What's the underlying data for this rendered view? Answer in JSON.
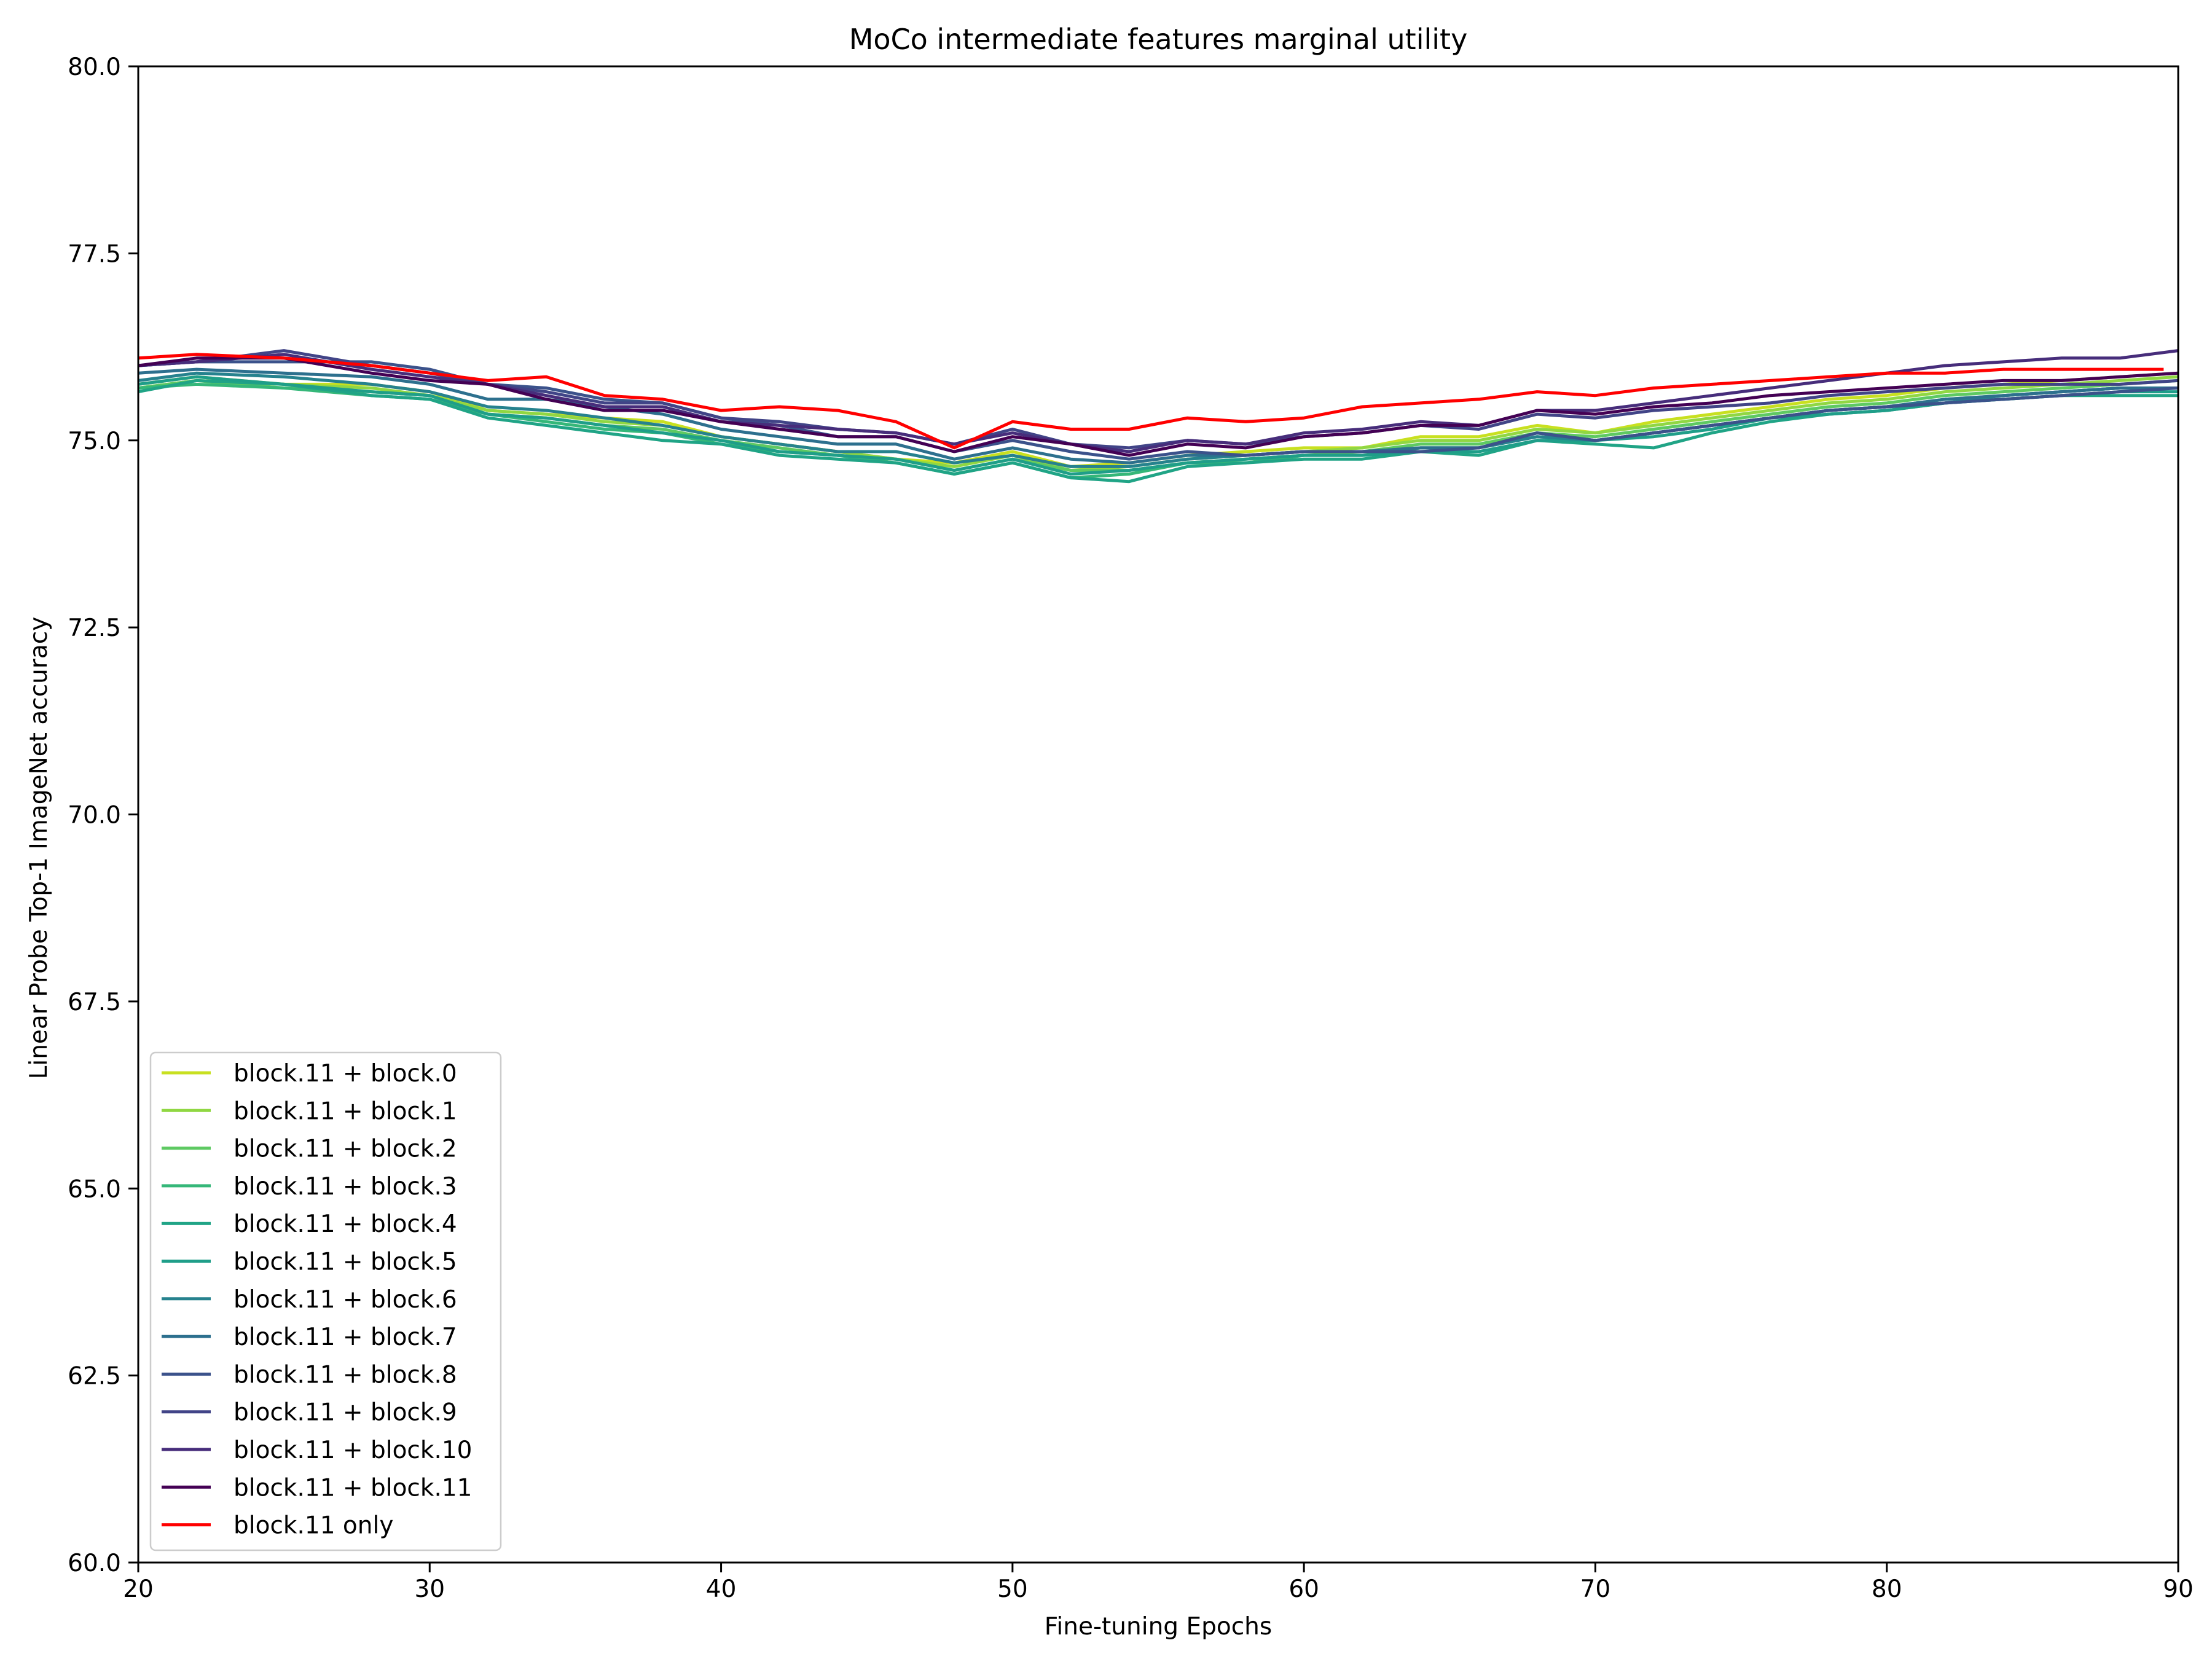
{
  "chart_data": {
    "type": "line",
    "title": "MoCo intermediate features marginal utility",
    "xlabel": "Fine-tuning Epochs",
    "ylabel": "Linear Probe Top-1 ImageNet accuracy",
    "xlim": [
      20,
      90
    ],
    "ylim": [
      60.0,
      80.0
    ],
    "xticks": [
      "20",
      "30",
      "40",
      "50",
      "60",
      "70",
      "80",
      "90"
    ],
    "yticks": [
      "60.0",
      "62.5",
      "65.0",
      "67.5",
      "70.0",
      "72.5",
      "75.0",
      "77.5",
      "80.0"
    ],
    "grid": false,
    "legend_position": "lower-left",
    "anchor_epochs": [
      20,
      22,
      25,
      28,
      30,
      32,
      34,
      36,
      38,
      40,
      42,
      44,
      46,
      48,
      50,
      52,
      54,
      56,
      58,
      60,
      62,
      64,
      66,
      68,
      70,
      72,
      74,
      76,
      78,
      80,
      82,
      84,
      86,
      88,
      90
    ],
    "series": [
      {
        "name": "block.11 + block.0",
        "color": "#c8e020",
        "values": [
          75.75,
          75.85,
          75.75,
          75.75,
          75.65,
          75.4,
          75.35,
          75.3,
          75.25,
          75.05,
          74.95,
          74.85,
          74.75,
          74.7,
          74.85,
          74.65,
          74.7,
          74.8,
          74.85,
          74.9,
          74.9,
          75.05,
          75.05,
          75.2,
          75.1,
          75.25,
          75.35,
          75.45,
          75.55,
          75.6,
          75.7,
          75.75,
          75.8,
          75.85,
          75.9
        ]
      },
      {
        "name": "block.11 + block.1",
        "color": "#90d743",
        "values": [
          75.7,
          75.8,
          75.75,
          75.7,
          75.6,
          75.4,
          75.35,
          75.25,
          75.2,
          75.05,
          74.95,
          74.85,
          74.75,
          74.65,
          74.8,
          74.6,
          74.65,
          74.75,
          74.8,
          74.85,
          74.9,
          75.0,
          75.0,
          75.15,
          75.1,
          75.2,
          75.3,
          75.4,
          75.5,
          75.55,
          75.65,
          75.7,
          75.75,
          75.8,
          75.85
        ]
      },
      {
        "name": "block.11 + block.2",
        "color": "#5ec962",
        "values": [
          75.7,
          75.8,
          75.7,
          75.65,
          75.6,
          75.35,
          75.3,
          75.2,
          75.15,
          75.0,
          74.9,
          74.8,
          74.75,
          74.6,
          74.75,
          74.6,
          74.6,
          74.7,
          74.75,
          74.8,
          74.85,
          74.95,
          74.95,
          75.1,
          75.05,
          75.15,
          75.25,
          75.35,
          75.45,
          75.5,
          75.6,
          75.65,
          75.7,
          75.75,
          75.8
        ]
      },
      {
        "name": "block.11 + block.3",
        "color": "#35b779",
        "values": [
          75.7,
          75.75,
          75.7,
          75.6,
          75.55,
          75.35,
          75.25,
          75.15,
          75.1,
          74.95,
          74.85,
          74.8,
          74.7,
          74.55,
          74.7,
          74.5,
          74.55,
          74.7,
          74.7,
          74.8,
          74.8,
          74.9,
          74.9,
          75.05,
          75.0,
          75.1,
          75.2,
          75.3,
          75.4,
          75.45,
          75.55,
          75.6,
          75.65,
          75.7,
          75.7
        ]
      },
      {
        "name": "block.11 + block.4",
        "color": "#20a486",
        "values": [
          75.65,
          75.8,
          75.75,
          75.6,
          75.55,
          75.3,
          75.2,
          75.1,
          75.0,
          74.95,
          74.8,
          74.75,
          74.7,
          74.55,
          74.7,
          74.5,
          74.45,
          74.65,
          74.7,
          74.75,
          74.75,
          74.85,
          74.8,
          75.0,
          74.95,
          74.9,
          75.1,
          75.25,
          75.35,
          75.4,
          75.5,
          75.55,
          75.6,
          75.6,
          75.6
        ]
      },
      {
        "name": "block.11 + block.5",
        "color": "#1f9e89",
        "values": [
          75.75,
          75.85,
          75.75,
          75.65,
          75.6,
          75.35,
          75.3,
          75.2,
          75.1,
          75.0,
          74.85,
          74.8,
          74.75,
          74.6,
          74.75,
          74.55,
          74.6,
          74.7,
          74.75,
          74.8,
          74.8,
          74.85,
          74.85,
          75.0,
          75.0,
          75.05,
          75.15,
          75.3,
          75.35,
          75.4,
          75.5,
          75.55,
          75.6,
          75.65,
          75.65
        ]
      },
      {
        "name": "block.11 + block.6",
        "color": "#26828e",
        "values": [
          75.8,
          75.9,
          75.85,
          75.75,
          75.65,
          75.45,
          75.4,
          75.3,
          75.2,
          75.05,
          74.95,
          74.85,
          74.85,
          74.7,
          74.8,
          74.65,
          74.65,
          74.75,
          74.8,
          74.85,
          74.85,
          74.9,
          74.9,
          75.05,
          75.0,
          75.1,
          75.2,
          75.3,
          75.4,
          75.45,
          75.5,
          75.6,
          75.65,
          75.7,
          75.7
        ]
      },
      {
        "name": "block.11 + block.7",
        "color": "#2d708e",
        "values": [
          75.9,
          75.95,
          75.9,
          75.85,
          75.75,
          75.55,
          75.55,
          75.45,
          75.35,
          75.15,
          75.05,
          74.95,
          74.95,
          74.75,
          74.9,
          74.75,
          74.7,
          74.8,
          74.8,
          74.85,
          74.85,
          74.9,
          74.9,
          75.1,
          75.0,
          75.1,
          75.2,
          75.3,
          75.4,
          75.45,
          75.55,
          75.6,
          75.65,
          75.7,
          75.7
        ]
      },
      {
        "name": "block.11 + block.8",
        "color": "#3b528b",
        "values": [
          76.0,
          76.05,
          76.05,
          76.05,
          75.95,
          75.75,
          75.7,
          75.55,
          75.5,
          75.3,
          75.2,
          75.05,
          75.05,
          74.85,
          75.0,
          74.85,
          74.75,
          74.85,
          74.8,
          74.85,
          74.85,
          74.85,
          74.9,
          75.1,
          75.0,
          75.1,
          75.2,
          75.3,
          75.4,
          75.45,
          75.5,
          75.55,
          75.6,
          75.65,
          75.7
        ]
      },
      {
        "name": "block.11 + block.9",
        "color": "#414487",
        "values": [
          76.0,
          76.05,
          76.2,
          76.0,
          75.9,
          75.75,
          75.65,
          75.5,
          75.5,
          75.3,
          75.25,
          75.15,
          75.1,
          74.95,
          75.15,
          74.95,
          74.9,
          75.0,
          74.95,
          75.05,
          75.1,
          75.2,
          75.15,
          75.35,
          75.3,
          75.4,
          75.45,
          75.5,
          75.6,
          75.65,
          75.7,
          75.75,
          75.75,
          75.75,
          75.8
        ]
      },
      {
        "name": "block.11 + block.10",
        "color": "#472d7b",
        "values": [
          76.0,
          76.05,
          76.15,
          75.95,
          75.85,
          75.75,
          75.6,
          75.45,
          75.45,
          75.25,
          75.2,
          75.15,
          75.1,
          74.95,
          75.1,
          74.95,
          74.85,
          75.0,
          74.95,
          75.1,
          75.15,
          75.25,
          75.2,
          75.4,
          75.4,
          75.5,
          75.6,
          75.7,
          75.8,
          75.9,
          76.0,
          76.05,
          76.1,
          76.1,
          76.2
        ]
      },
      {
        "name": "block.11 + block.11",
        "color": "#440154",
        "values": [
          76.0,
          76.1,
          76.1,
          75.9,
          75.8,
          75.75,
          75.55,
          75.4,
          75.4,
          75.25,
          75.15,
          75.05,
          75.05,
          74.85,
          75.05,
          74.95,
          74.8,
          74.95,
          74.9,
          75.05,
          75.1,
          75.2,
          75.2,
          75.4,
          75.35,
          75.45,
          75.5,
          75.6,
          75.65,
          75.7,
          75.75,
          75.8,
          75.8,
          75.85,
          75.9
        ]
      },
      {
        "name": "block.11 only",
        "color": "#ff0000",
        "values": [
          76.1,
          76.15,
          76.1,
          76.0,
          75.9,
          75.8,
          75.85,
          75.6,
          75.55,
          75.4,
          75.45,
          75.4,
          75.25,
          74.9,
          75.25,
          75.15,
          75.15,
          75.3,
          75.25,
          75.3,
          75.45,
          75.5,
          75.55,
          75.65,
          75.6,
          75.7,
          75.75,
          75.8,
          75.85,
          75.9,
          75.9,
          75.95,
          75.95,
          75.95,
          null
        ]
      }
    ]
  }
}
